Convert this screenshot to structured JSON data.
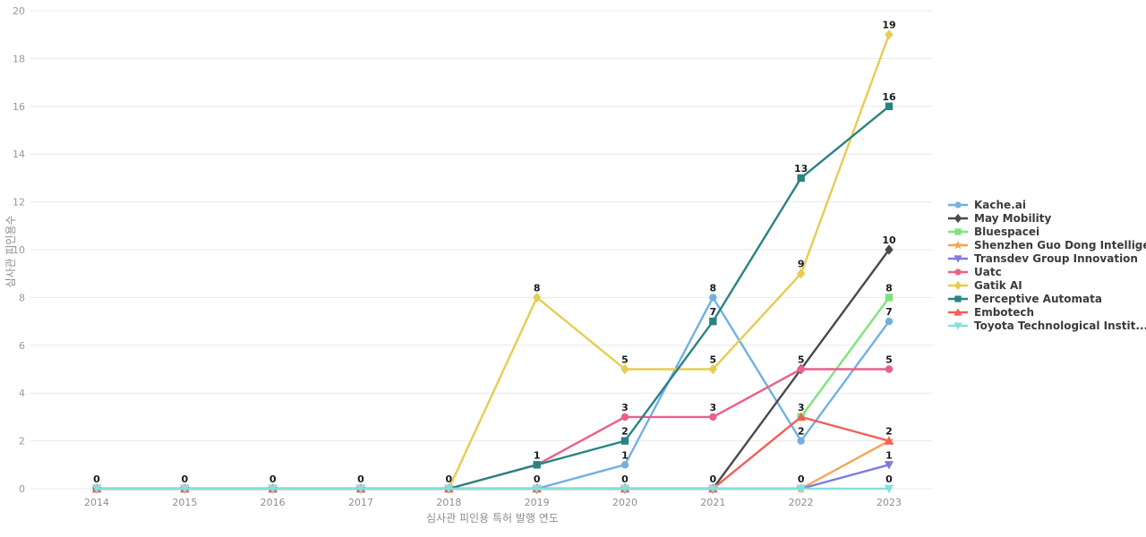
{
  "chart_data": {
    "type": "line",
    "title": "",
    "xlabel": "심사관 피인용 특허 발행 연도",
    "ylabel": "심사관 피인용수",
    "x": [
      2014,
      2015,
      2016,
      2017,
      2018,
      2019,
      2020,
      2021,
      2022,
      2023
    ],
    "ylim": [
      0,
      20
    ],
    "yticks": [
      0,
      2,
      4,
      6,
      8,
      10,
      12,
      14,
      16,
      18,
      20
    ],
    "grid": "horizontal",
    "legend_position": "right",
    "point_labels": "every point, bold, deduplicated per year/value",
    "series": [
      {
        "name": "Kache.ai",
        "color": "#71B0E3",
        "marker": "circle",
        "values": [
          0,
          0,
          0,
          0,
          0,
          0,
          1,
          8,
          2,
          7
        ]
      },
      {
        "name": "May Mobility",
        "color": "#4A4A4A",
        "marker": "diamond",
        "values": [
          0,
          0,
          0,
          0,
          0,
          0,
          0,
          0,
          5,
          10
        ]
      },
      {
        "name": "Bluespacei",
        "color": "#7DE37D",
        "marker": "square",
        "values": [
          null,
          null,
          null,
          null,
          null,
          null,
          null,
          null,
          3,
          8
        ]
      },
      {
        "name": "Shenzhen Guo Dong Intellige...",
        "color": "#F6A556",
        "marker": "star",
        "values": [
          0,
          0,
          0,
          0,
          0,
          0,
          0,
          0,
          0,
          2
        ]
      },
      {
        "name": "Transdev Group Innovation",
        "color": "#7E7CE3",
        "marker": "triangle-down",
        "values": [
          0,
          0,
          0,
          0,
          0,
          0,
          0,
          0,
          0,
          1
        ]
      },
      {
        "name": "Uatc",
        "color": "#EC5F8A",
        "marker": "circle",
        "values": [
          0,
          0,
          0,
          0,
          0,
          1,
          3,
          3,
          5,
          5
        ]
      },
      {
        "name": "Gatik AI",
        "color": "#E4CE51",
        "marker": "diamond",
        "values": [
          0,
          0,
          0,
          0,
          0,
          8,
          5,
          5,
          9,
          19
        ]
      },
      {
        "name": "Perceptive Automata",
        "color": "#2A8383",
        "marker": "square",
        "values": [
          0,
          0,
          0,
          0,
          0,
          1,
          2,
          7,
          13,
          16
        ]
      },
      {
        "name": "Embotech",
        "color": "#F15F57",
        "marker": "triangle-up",
        "values": [
          0,
          0,
          0,
          0,
          0,
          0,
          0,
          0,
          3,
          2
        ]
      },
      {
        "name": "Toyota Technological Instit...",
        "color": "#89DEDB",
        "marker": "triangle-down",
        "values": [
          0,
          0,
          0,
          0,
          0,
          0,
          0,
          0,
          0,
          0
        ]
      }
    ]
  }
}
